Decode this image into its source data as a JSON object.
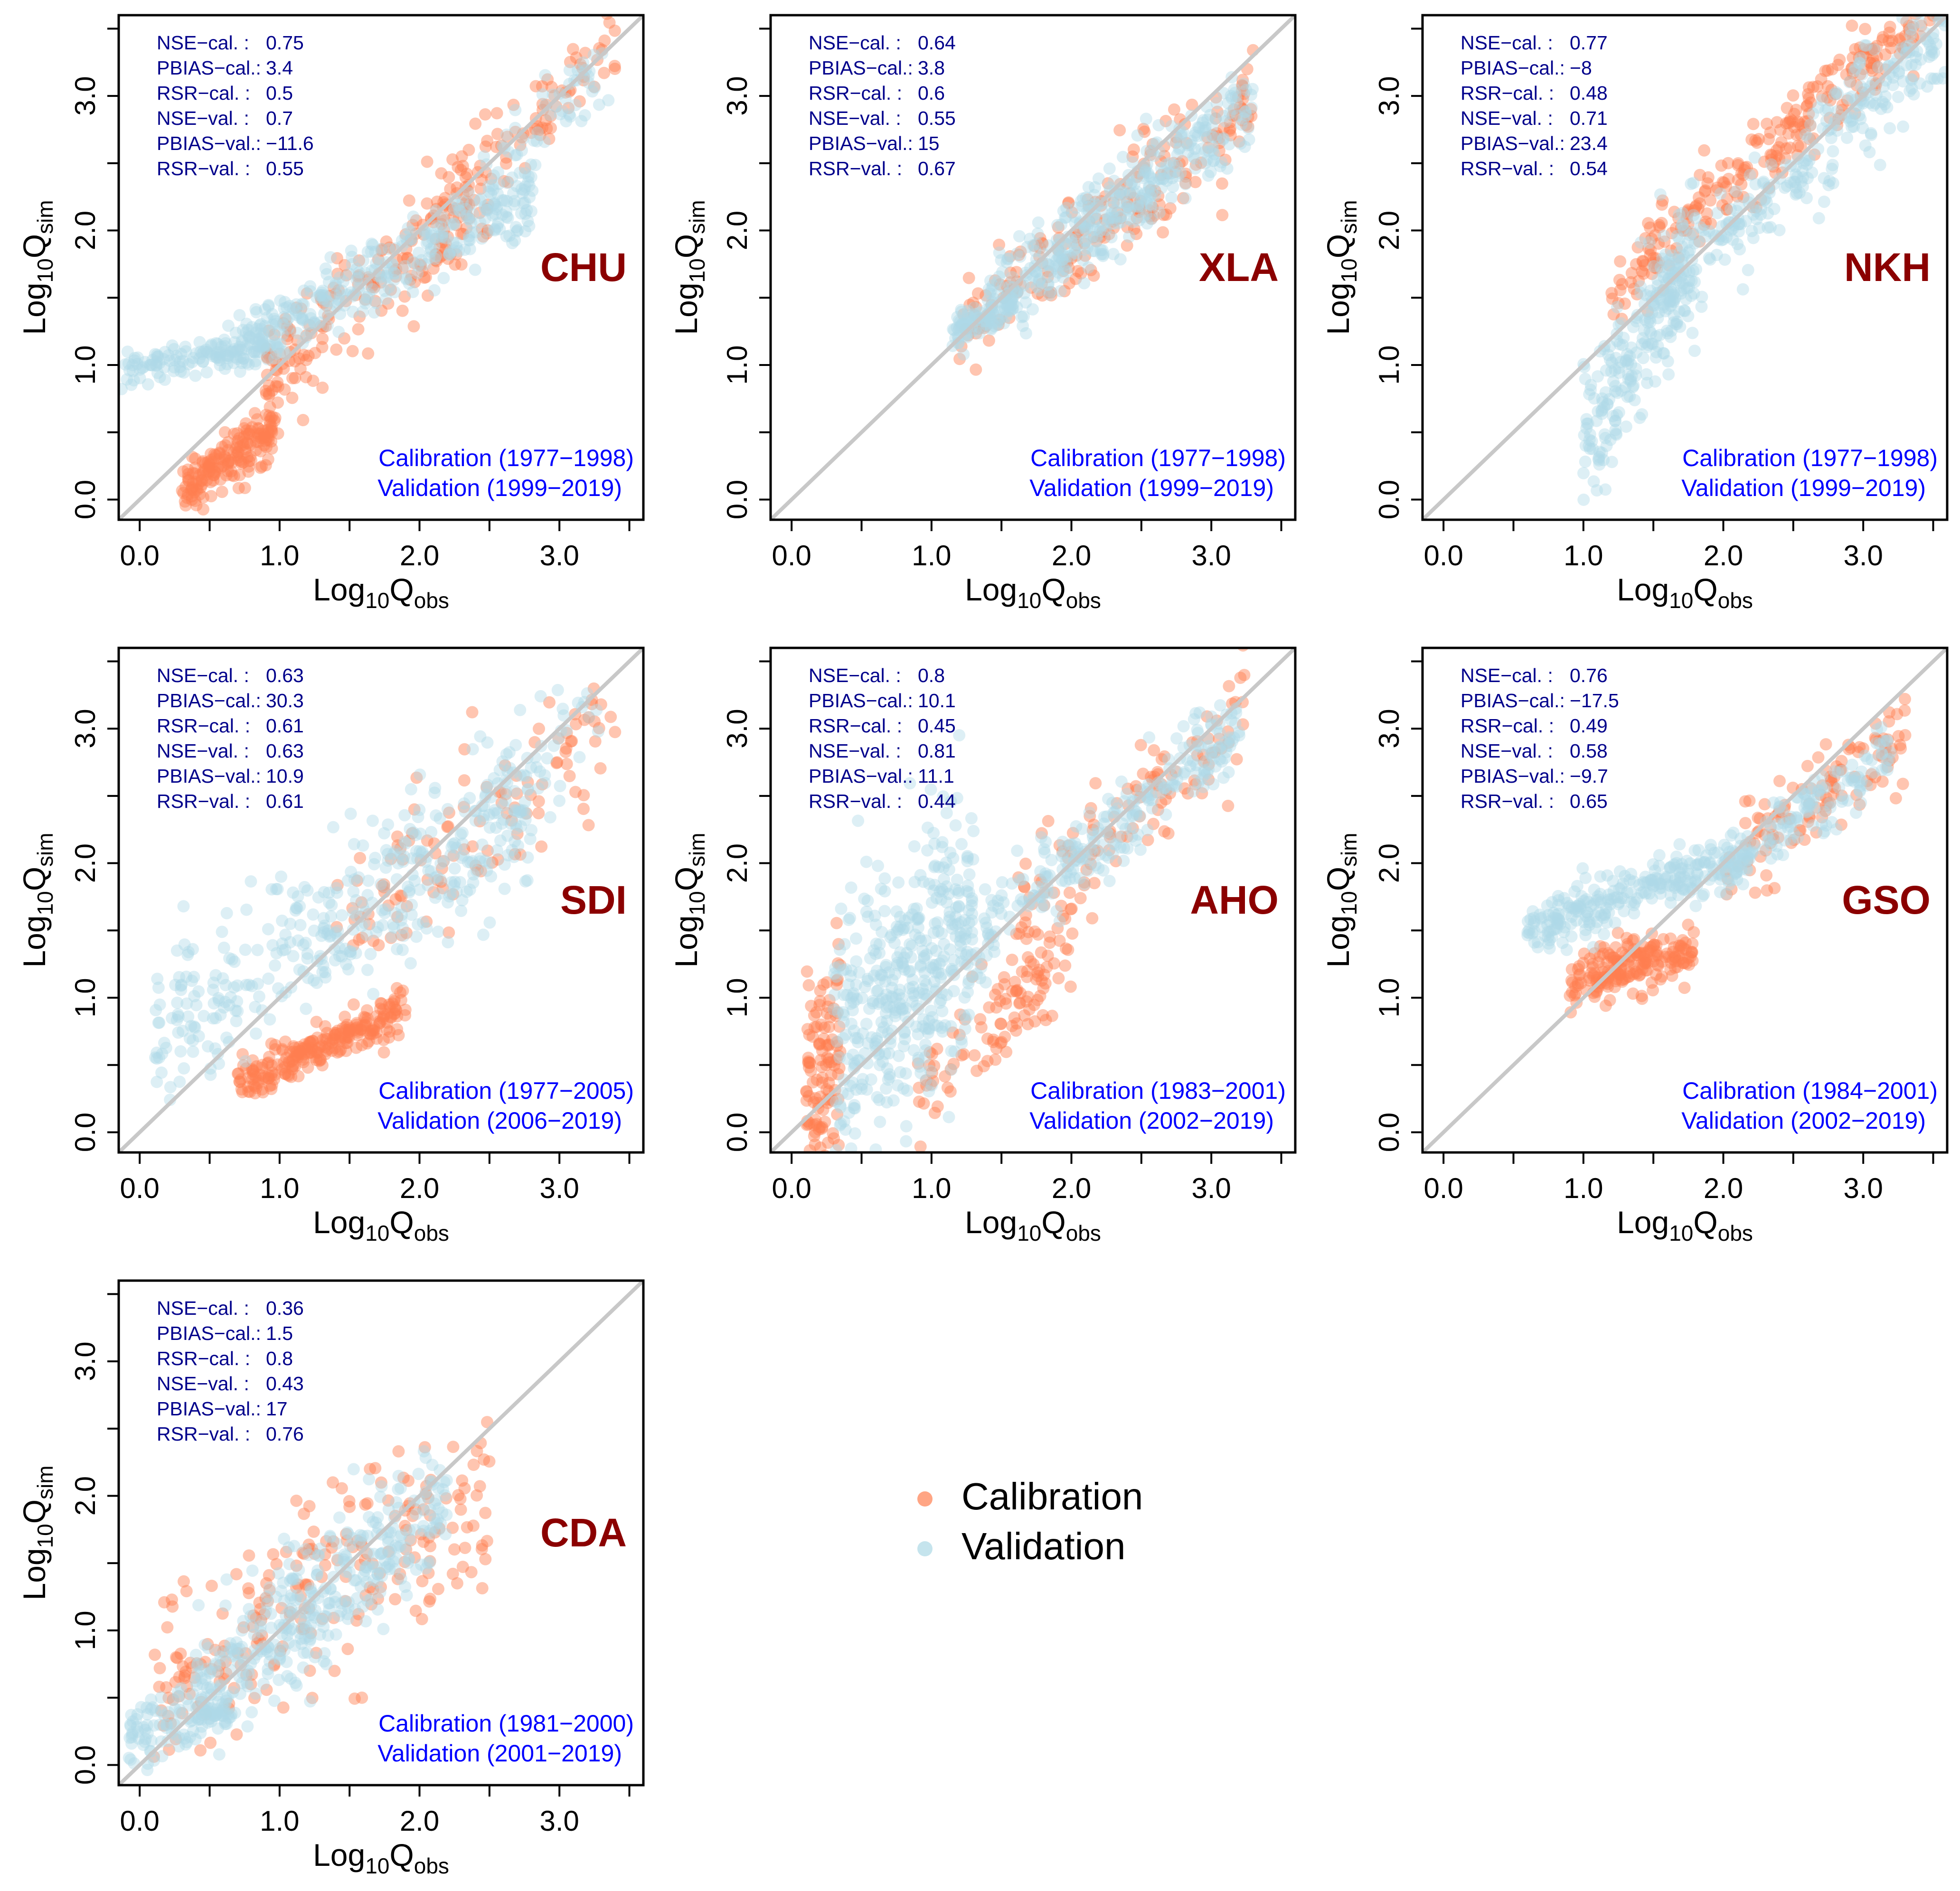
{
  "colors": {
    "calibration": "#FF7F50",
    "validation": "#ADD8E6",
    "station_label": "#8B0000",
    "stats_text": "#00008B",
    "period_text": "#0000FF",
    "one_to_one_line": "#C8C8C8"
  },
  "axis": {
    "x_label_base": "Log",
    "x_label_sub": "10",
    "x_label_q": "Q",
    "x_label_suffix": "obs",
    "y_label_base": "Log",
    "y_label_sub": "10",
    "y_label_q": "Q",
    "y_label_suffix": "sim",
    "ticks": [
      "0.0",
      "1.0",
      "2.0",
      "3.0"
    ],
    "tick_values": [
      0,
      1,
      2,
      3
    ],
    "minor_tick_step": 0.5,
    "range": [
      -0.15,
      3.6
    ]
  },
  "legend": {
    "items": [
      {
        "label": "Calibration",
        "color_key": "calibration"
      },
      {
        "label": "Validation",
        "color_key": "validation"
      }
    ]
  },
  "chart_data": [
    {
      "type": "scatter",
      "station": "CHU",
      "stats": [
        {
          "key": "NSE−cal.  : ",
          "value": "0.75"
        },
        {
          "key": "PBIAS−cal.: ",
          "value": "3.4"
        },
        {
          "key": "RSR−cal.  : ",
          "value": "0.5"
        },
        {
          "key": "NSE−val.  : ",
          "value": "0.7"
        },
        {
          "key": "PBIAS−val.: ",
          "value": "−11.6"
        },
        {
          "key": "RSR−val.  : ",
          "value": "0.55"
        }
      ],
      "calibration_period": "Calibration (1977−1998)",
      "validation_period": "Validation (1999−2019)",
      "xlim": [
        -0.15,
        3.6
      ],
      "ylim": [
        -0.15,
        3.6
      ],
      "series": [
        {
          "name": "Calibration",
          "clusters": [
            {
              "x0": 0.3,
              "x1": 0.95,
              "m": 0.7,
              "c": -0.15,
              "sd": 0.1,
              "n": 180
            },
            {
              "x0": 0.9,
              "x1": 2.5,
              "m": 0.85,
              "c": 0.15,
              "sd": 0.22,
              "n": 200
            },
            {
              "x0": 2.0,
              "x1": 3.4,
              "m": 1.0,
              "c": 0.0,
              "sd": 0.18,
              "n": 90
            }
          ]
        },
        {
          "name": "Validation",
          "clusters": [
            {
              "x0": -0.15,
              "x1": 0.9,
              "m": 0.2,
              "c": 0.98,
              "sd": 0.06,
              "n": 130
            },
            {
              "x0": 0.6,
              "x1": 2.8,
              "m": 0.55,
              "c": 0.75,
              "sd": 0.14,
              "n": 320
            },
            {
              "x0": 2.4,
              "x1": 3.4,
              "m": 0.95,
              "c": 0.05,
              "sd": 0.18,
              "n": 60
            }
          ]
        }
      ]
    },
    {
      "type": "scatter",
      "station": "XLA",
      "stats": [
        {
          "key": "NSE−cal.  : ",
          "value": "0.64"
        },
        {
          "key": "PBIAS−cal.: ",
          "value": "3.8"
        },
        {
          "key": "RSR−cal.  : ",
          "value": "0.6"
        },
        {
          "key": "NSE−val.  : ",
          "value": "0.55"
        },
        {
          "key": "PBIAS−val.: ",
          "value": "15"
        },
        {
          "key": "RSR−val.  : ",
          "value": "0.67"
        }
      ],
      "calibration_period": "Calibration (1977−1998)",
      "validation_period": "Validation (1999−2019)",
      "xlim": [
        -0.15,
        3.6
      ],
      "ylim": [
        -0.15,
        3.6
      ],
      "series": [
        {
          "name": "Calibration",
          "clusters": [
            {
              "x0": 1.2,
              "x1": 3.3,
              "m": 0.8,
              "c": 0.3,
              "sd": 0.18,
              "n": 220
            }
          ]
        },
        {
          "name": "Validation",
          "clusters": [
            {
              "x0": 1.15,
              "x1": 1.6,
              "m": 0.4,
              "c": 0.8,
              "sd": 0.07,
              "n": 80
            },
            {
              "x0": 1.4,
              "x1": 3.3,
              "m": 0.8,
              "c": 0.3,
              "sd": 0.16,
              "n": 380
            }
          ]
        }
      ]
    },
    {
      "type": "scatter",
      "station": "NKH",
      "stats": [
        {
          "key": "NSE−cal.  : ",
          "value": "0.77"
        },
        {
          "key": "PBIAS−cal.: ",
          "value": "−8"
        },
        {
          "key": "RSR−cal.  : ",
          "value": "0.48"
        },
        {
          "key": "NSE−val.  : ",
          "value": "0.71"
        },
        {
          "key": "PBIAS−val.: ",
          "value": "23.4"
        },
        {
          "key": "RSR−val.  : ",
          "value": "0.54"
        }
      ],
      "calibration_period": "Calibration (1977−1998)",
      "validation_period": "Validation (1999−2019)",
      "xlim": [
        -0.15,
        3.6
      ],
      "ylim": [
        -0.15,
        3.6
      ],
      "series": [
        {
          "name": "Calibration",
          "clusters": [
            {
              "x0": 1.2,
              "x1": 3.6,
              "m": 0.9,
              "c": 0.5,
              "sd": 0.14,
              "n": 280
            }
          ]
        },
        {
          "name": "Validation",
          "clusters": [
            {
              "x0": 1.0,
              "x1": 1.8,
              "m": 1.6,
              "c": -1.1,
              "sd": 0.28,
              "n": 240
            },
            {
              "x0": 1.6,
              "x1": 3.6,
              "m": 0.95,
              "c": 0.05,
              "sd": 0.18,
              "n": 280
            }
          ]
        }
      ]
    },
    {
      "type": "scatter",
      "station": "SDI",
      "stats": [
        {
          "key": "NSE−cal.  : ",
          "value": "0.63"
        },
        {
          "key": "PBIAS−cal.: ",
          "value": "30.3"
        },
        {
          "key": "RSR−cal.  : ",
          "value": "0.61"
        },
        {
          "key": "NSE−val.  : ",
          "value": "0.63"
        },
        {
          "key": "PBIAS−val.: ",
          "value": "10.9"
        },
        {
          "key": "RSR−val.  : ",
          "value": "0.61"
        }
      ],
      "calibration_period": "Calibration (1977−2005)",
      "validation_period": "Validation (2006−2019)",
      "xlim": [
        -0.15,
        3.6
      ],
      "ylim": [
        -0.15,
        3.6
      ],
      "series": [
        {
          "name": "Calibration",
          "clusters": [
            {
              "x0": 0.7,
              "x1": 1.9,
              "m": 0.45,
              "c": 0.05,
              "sd": 0.08,
              "n": 240
            },
            {
              "x0": 1.4,
              "x1": 3.4,
              "m": 0.8,
              "c": 0.3,
              "sd": 0.28,
              "n": 120
            }
          ]
        },
        {
          "name": "Validation",
          "clusters": [
            {
              "x0": 0.1,
              "x1": 2.8,
              "m": 0.6,
              "c": 0.7,
              "sd": 0.28,
              "n": 380
            },
            {
              "x0": 2.2,
              "x1": 3.3,
              "m": 0.9,
              "c": 0.2,
              "sd": 0.2,
              "n": 60
            }
          ]
        }
      ]
    },
    {
      "type": "scatter",
      "station": "AHO",
      "stats": [
        {
          "key": "NSE−cal.  : ",
          "value": "0.8"
        },
        {
          "key": "PBIAS−cal.: ",
          "value": "10.1"
        },
        {
          "key": "RSR−cal.  : ",
          "value": "0.45"
        },
        {
          "key": "NSE−val.  : ",
          "value": "0.81"
        },
        {
          "key": "PBIAS−val.: ",
          "value": "11.1"
        },
        {
          "key": "RSR−val.  : ",
          "value": "0.44"
        }
      ],
      "calibration_period": "Calibration (1983−2001)",
      "validation_period": "Validation (2002−2019)",
      "xlim": [
        -0.15,
        3.6
      ],
      "ylim": [
        -0.15,
        3.6
      ],
      "series": [
        {
          "name": "Calibration",
          "clusters": [
            {
              "x0": 0.1,
              "x1": 0.35,
              "m": 2.0,
              "c": 0.0,
              "sd": 0.45,
              "n": 120
            },
            {
              "x0": 0.9,
              "x1": 2.0,
              "m": 1.0,
              "c": -0.6,
              "sd": 0.2,
              "n": 110
            },
            {
              "x0": 1.6,
              "x1": 3.3,
              "m": 0.85,
              "c": 0.3,
              "sd": 0.2,
              "n": 120
            }
          ]
        },
        {
          "name": "Validation",
          "clusters": [
            {
              "x0": 0.3,
              "x1": 1.3,
              "m": 0.9,
              "c": 0.4,
              "sd": 0.5,
              "n": 420
            },
            {
              "x0": 1.2,
              "x1": 3.2,
              "m": 0.85,
              "c": 0.3,
              "sd": 0.16,
              "n": 260
            }
          ]
        }
      ]
    },
    {
      "type": "scatter",
      "station": "GSO",
      "stats": [
        {
          "key": "NSE−cal.  : ",
          "value": "0.76"
        },
        {
          "key": "PBIAS−cal.: ",
          "value": "−17.5"
        },
        {
          "key": "RSR−cal.  : ",
          "value": "0.49"
        },
        {
          "key": "NSE−val.  : ",
          "value": "0.58"
        },
        {
          "key": "PBIAS−val.: ",
          "value": "−9.7"
        },
        {
          "key": "RSR−val.  : ",
          "value": "0.65"
        }
      ],
      "calibration_period": "Calibration (1984−2001)",
      "validation_period": "Validation (2002−2019)",
      "xlim": [
        -0.15,
        3.6
      ],
      "ylim": [
        -0.15,
        3.6
      ],
      "series": [
        {
          "name": "Calibration",
          "clusters": [
            {
              "x0": 0.9,
              "x1": 1.8,
              "m": 0.25,
              "c": 0.9,
              "sd": 0.1,
              "n": 200
            },
            {
              "x0": 2.0,
              "x1": 3.3,
              "m": 0.8,
              "c": 0.35,
              "sd": 0.15,
              "n": 120
            }
          ]
        },
        {
          "name": "Validation",
          "clusters": [
            {
              "x0": 0.6,
              "x1": 2.2,
              "m": 0.35,
              "c": 1.3,
              "sd": 0.1,
              "n": 280
            },
            {
              "x0": 2.0,
              "x1": 3.2,
              "m": 0.7,
              "c": 0.55,
              "sd": 0.14,
              "n": 130
            }
          ]
        }
      ]
    },
    {
      "type": "scatter",
      "station": "CDA",
      "stats": [
        {
          "key": "NSE−cal.  : ",
          "value": "0.36"
        },
        {
          "key": "PBIAS−cal.: ",
          "value": "1.5"
        },
        {
          "key": "RSR−cal.  : ",
          "value": "0.8"
        },
        {
          "key": "NSE−val.  : ",
          "value": "0.43"
        },
        {
          "key": "PBIAS−val.: ",
          "value": "17"
        },
        {
          "key": "RSR−val.  : ",
          "value": "0.76"
        }
      ],
      "calibration_period": "Calibration (1981−2000)",
      "validation_period": "Validation (2001−2019)",
      "xlim": [
        -0.15,
        3.6
      ],
      "ylim": [
        -0.15,
        3.6
      ],
      "series": [
        {
          "name": "Calibration",
          "clusters": [
            {
              "x0": 0.1,
              "x1": 2.5,
              "m": 0.6,
              "c": 0.5,
              "sd": 0.35,
              "n": 240
            }
          ]
        },
        {
          "name": "Validation",
          "clusters": [
            {
              "x0": -0.1,
              "x1": 0.7,
              "m": 0.3,
              "c": 0.25,
              "sd": 0.12,
              "n": 120
            },
            {
              "x0": 0.4,
              "x1": 2.2,
              "m": 0.8,
              "c": 0.2,
              "sd": 0.25,
              "n": 360
            }
          ]
        }
      ]
    }
  ]
}
